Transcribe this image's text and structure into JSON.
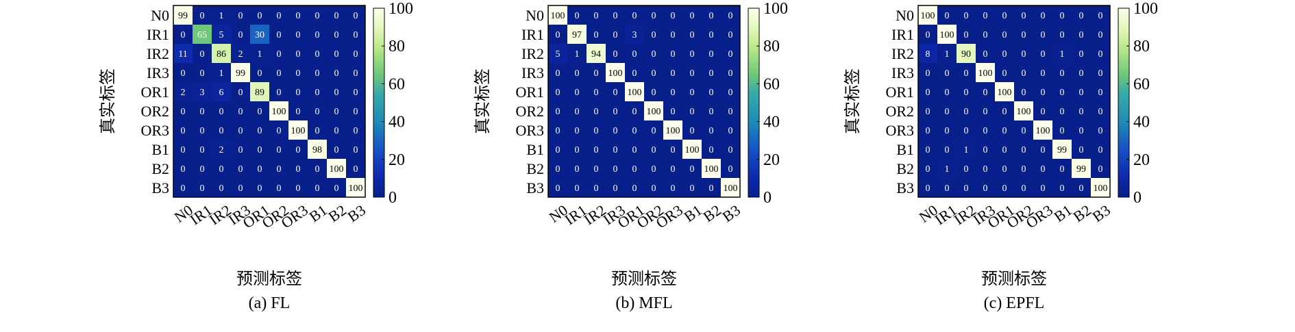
{
  "chart_data": [
    {
      "type": "heatmap",
      "caption": "(a) FL",
      "xlabel": "预测标签",
      "ylabel": "真实标签",
      "row_labels": [
        "N0",
        "IR1",
        "IR2",
        "IR3",
        "OR1",
        "OR2",
        "OR3",
        "B1",
        "B2",
        "B3"
      ],
      "col_labels": [
        "N0",
        "IR1",
        "IR2",
        "IR3",
        "OR1",
        "OR2",
        "OR3",
        "B1",
        "B2",
        "B3"
      ],
      "colorbar_ticks": [
        0,
        20,
        40,
        60,
        80,
        100
      ],
      "value_range": [
        0,
        100
      ],
      "values": [
        [
          99,
          0,
          1,
          0,
          0,
          0,
          0,
          0,
          0,
          0
        ],
        [
          0,
          65,
          5,
          0,
          30,
          0,
          0,
          0,
          0,
          0
        ],
        [
          11,
          0,
          86,
          2,
          1,
          0,
          0,
          0,
          0,
          0
        ],
        [
          0,
          0,
          1,
          99,
          0,
          0,
          0,
          0,
          0,
          0
        ],
        [
          2,
          3,
          6,
          0,
          89,
          0,
          0,
          0,
          0,
          0
        ],
        [
          0,
          0,
          0,
          0,
          0,
          100,
          0,
          0,
          0,
          0
        ],
        [
          0,
          0,
          0,
          0,
          0,
          0,
          100,
          0,
          0,
          0
        ],
        [
          0,
          0,
          2,
          0,
          0,
          0,
          0,
          98,
          0,
          0
        ],
        [
          0,
          0,
          0,
          0,
          0,
          0,
          0,
          0,
          100,
          0
        ],
        [
          0,
          0,
          0,
          0,
          0,
          0,
          0,
          0,
          0,
          100
        ]
      ]
    },
    {
      "type": "heatmap",
      "caption": "(b) MFL",
      "xlabel": "预测标签",
      "ylabel": "真实标签",
      "row_labels": [
        "N0",
        "IR1",
        "IR2",
        "IR3",
        "OR1",
        "OR2",
        "OR3",
        "B1",
        "B2",
        "B3"
      ],
      "col_labels": [
        "N0",
        "IR1",
        "IR2",
        "IR3",
        "OR1",
        "OR2",
        "OR3",
        "B1",
        "B2",
        "B3"
      ],
      "colorbar_ticks": [
        0,
        20,
        40,
        60,
        80,
        100
      ],
      "value_range": [
        0,
        100
      ],
      "values": [
        [
          100,
          0,
          0,
          0,
          0,
          0,
          0,
          0,
          0,
          0
        ],
        [
          0,
          97,
          0,
          0,
          3,
          0,
          0,
          0,
          0,
          0
        ],
        [
          5,
          1,
          94,
          0,
          0,
          0,
          0,
          0,
          0,
          0
        ],
        [
          0,
          0,
          0,
          100,
          0,
          0,
          0,
          0,
          0,
          0
        ],
        [
          0,
          0,
          0,
          0,
          100,
          0,
          0,
          0,
          0,
          0
        ],
        [
          0,
          0,
          0,
          0,
          0,
          100,
          0,
          0,
          0,
          0
        ],
        [
          0,
          0,
          0,
          0,
          0,
          0,
          100,
          0,
          0,
          0
        ],
        [
          0,
          0,
          0,
          0,
          0,
          0,
          0,
          100,
          0,
          0
        ],
        [
          0,
          0,
          0,
          0,
          0,
          0,
          0,
          0,
          100,
          0
        ],
        [
          0,
          0,
          0,
          0,
          0,
          0,
          0,
          0,
          0,
          100
        ]
      ]
    },
    {
      "type": "heatmap",
      "caption": "(c) EPFL",
      "xlabel": "预测标签",
      "ylabel": "真实标签",
      "row_labels": [
        "N0",
        "IR1",
        "IR2",
        "IR3",
        "OR1",
        "OR2",
        "OR3",
        "B1",
        "B2",
        "B3"
      ],
      "col_labels": [
        "N0",
        "IR1",
        "IR2",
        "IR3",
        "OR1",
        "OR2",
        "OR3",
        "B1",
        "B2",
        "B3"
      ],
      "colorbar_ticks": [
        0,
        20,
        40,
        60,
        80,
        100
      ],
      "value_range": [
        0,
        100
      ],
      "values": [
        [
          100,
          0,
          0,
          0,
          0,
          0,
          0,
          0,
          0,
          0
        ],
        [
          0,
          100,
          0,
          0,
          0,
          0,
          0,
          0,
          0,
          0
        ],
        [
          8,
          1,
          90,
          0,
          0,
          0,
          0,
          1,
          0,
          0
        ],
        [
          0,
          0,
          0,
          100,
          0,
          0,
          0,
          0,
          0,
          0
        ],
        [
          0,
          0,
          0,
          0,
          100,
          0,
          0,
          0,
          0,
          0
        ],
        [
          0,
          0,
          0,
          0,
          0,
          100,
          0,
          0,
          0,
          0
        ],
        [
          0,
          0,
          0,
          0,
          0,
          0,
          100,
          0,
          0,
          0
        ],
        [
          0,
          0,
          1,
          0,
          0,
          0,
          0,
          99,
          0,
          0
        ],
        [
          0,
          1,
          0,
          0,
          0,
          0,
          0,
          0,
          99,
          0
        ],
        [
          0,
          0,
          0,
          0,
          0,
          0,
          0,
          0,
          0,
          100
        ]
      ]
    }
  ]
}
